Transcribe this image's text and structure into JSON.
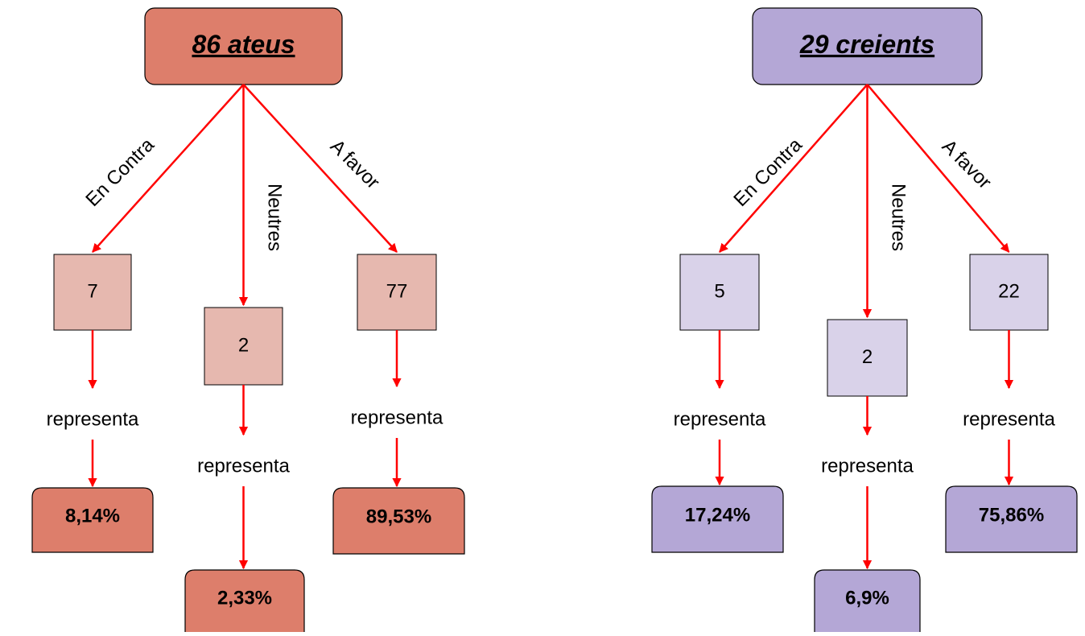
{
  "trees": [
    {
      "root": "86 ateus",
      "branches": [
        {
          "label": "En Contra",
          "count": "7",
          "verb": "representa",
          "percent": "8,14%"
        },
        {
          "label": "Neutres",
          "count": "2",
          "verb": "representa",
          "percent": "2,33%"
        },
        {
          "label": "A favor",
          "count": "77",
          "verb": "representa",
          "percent": "89,53%"
        }
      ]
    },
    {
      "root": "29 creients",
      "branches": [
        {
          "label": "En Contra",
          "count": "5",
          "verb": "representa",
          "percent": "17,24%"
        },
        {
          "label": "Neutres",
          "count": "2",
          "verb": "representa",
          "percent": "6,9%"
        },
        {
          "label": "A favor",
          "count": "22",
          "verb": "representa",
          "percent": "75,86%"
        }
      ]
    }
  ]
}
